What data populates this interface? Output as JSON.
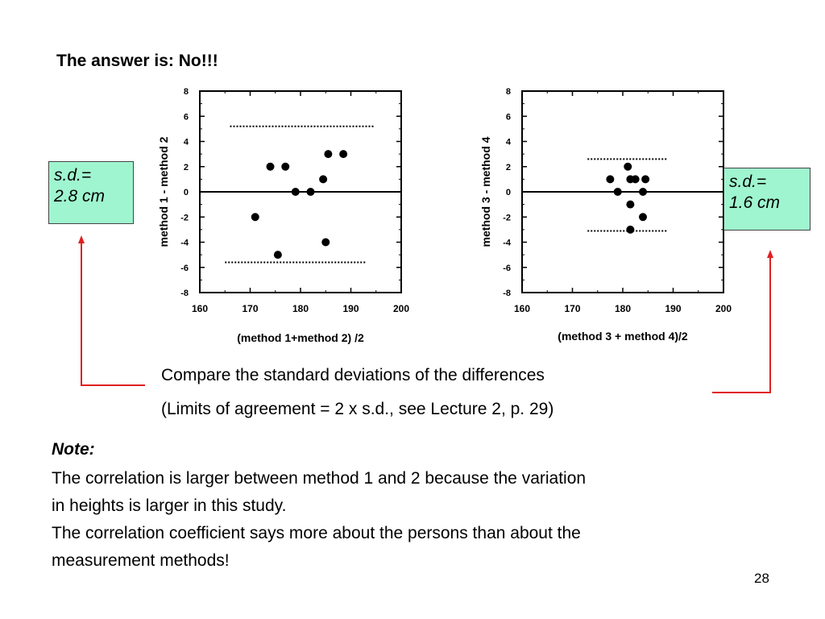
{
  "slide": {
    "title": "The answer is: No!!!",
    "sd_left": {
      "line1": "s.d.=",
      "line2": "2.8 cm"
    },
    "sd_right": {
      "line1": "s.d.=",
      "line2": "1.6 cm"
    },
    "compare_line1": "Compare the standard deviations of the differences",
    "compare_line2": "(Limits of agreement = 2 x s.d., see Lecture 2, p. 29)",
    "note_heading": "Note:",
    "note_lines": [
      "The correlation is larger between method 1 and 2 because the variation",
      "in heights is larger in this study.",
      "The correlation coefficient says more about the persons than about the",
      "measurement methods!"
    ],
    "page_number": "28",
    "colors": {
      "sd_box": "#9ff5cf",
      "arrow": "#e02020"
    }
  },
  "chart_data": [
    {
      "type": "scatter",
      "title": "",
      "xlabel": "(method 1+method 2) /2",
      "ylabel": "method 1 - method 2",
      "xlim": [
        160,
        200
      ],
      "ylim": [
        -8,
        8
      ],
      "x_ticks": [
        160,
        170,
        180,
        190,
        200
      ],
      "y_ticks": [
        -8,
        -6,
        -4,
        -2,
        0,
        2,
        4,
        6,
        8
      ],
      "zero_line": 0,
      "limits_of_agreement": [
        {
          "y": 5.2,
          "x_range": [
            166,
            194.5
          ]
        },
        {
          "y": -5.6,
          "x_range": [
            165,
            193
          ]
        }
      ],
      "points": [
        {
          "x": 171,
          "y": -2
        },
        {
          "x": 174,
          "y": 2
        },
        {
          "x": 175.5,
          "y": -5
        },
        {
          "x": 177,
          "y": 2
        },
        {
          "x": 179,
          "y": 0
        },
        {
          "x": 182,
          "y": 0
        },
        {
          "x": 184.5,
          "y": 1
        },
        {
          "x": 185,
          "y": -4
        },
        {
          "x": 185.5,
          "y": 3
        },
        {
          "x": 188.5,
          "y": 3
        }
      ]
    },
    {
      "type": "scatter",
      "title": "",
      "xlabel": "(method 3 + method 4)/2",
      "ylabel": "method 3 - method 4",
      "xlim": [
        160,
        200
      ],
      "ylim": [
        -8,
        8
      ],
      "x_ticks": [
        160,
        170,
        180,
        190,
        200
      ],
      "y_ticks": [
        -8,
        -6,
        -4,
        -2,
        0,
        2,
        4,
        6,
        8
      ],
      "zero_line": 0,
      "limits_of_agreement": [
        {
          "y": 2.6,
          "x_range": [
            173,
            189
          ]
        },
        {
          "y": -3.1,
          "x_range": [
            173,
            189
          ]
        }
      ],
      "points": [
        {
          "x": 177.5,
          "y": 1
        },
        {
          "x": 179,
          "y": 0
        },
        {
          "x": 181,
          "y": 2
        },
        {
          "x": 181.5,
          "y": 1
        },
        {
          "x": 181.5,
          "y": -1
        },
        {
          "x": 181.5,
          "y": -3
        },
        {
          "x": 182.5,
          "y": 1
        },
        {
          "x": 184,
          "y": 0
        },
        {
          "x": 184,
          "y": -2
        },
        {
          "x": 184.5,
          "y": 1
        }
      ]
    }
  ]
}
